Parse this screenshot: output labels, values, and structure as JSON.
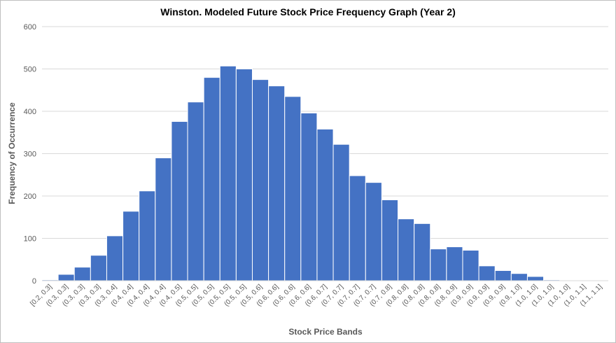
{
  "chart_data": {
    "type": "bar",
    "title": "Winston.  Modeled Future Stock Price Frequency Graph (Year 2)",
    "xlabel": "Stock Price Bands",
    "ylabel": "Frequency of Occurrence",
    "ylim": [
      0,
      600
    ],
    "yticks": [
      0,
      100,
      200,
      300,
      400,
      500,
      600
    ],
    "grid": true,
    "legend": "none",
    "bar_color": "#4472c4",
    "categories": [
      "[0.2, 0.3]",
      "(0.3, 0.3]",
      "(0.3, 0.3]",
      "(0.3, 0.3]",
      "(0.3, 0.4]",
      "(0.4, 0.4]",
      "(0.4, 0.4]",
      "(0.4, 0.4]",
      "(0.4, 0.5]",
      "(0.5, 0.5]",
      "(0.5, 0.5]",
      "(0.5, 0.5]",
      "(0.5, 0.5]",
      "(0.5, 0.6]",
      "(0.6, 0.6]",
      "(0.6, 0.6]",
      "(0.6, 0.6]",
      "(0.6, 0.7]",
      "(0.7, 0.7]",
      "(0.7, 0.7]",
      "(0.7, 0.7]",
      "(0.7, 0.8]",
      "(0.8, 0.8]",
      "(0.8, 0.8]",
      "(0.8, 0.8]",
      "(0.8, 0.9]",
      "(0.9, 0.9]",
      "(0.9, 0.9]",
      "(0.9, 0.9]",
      "(0.9, 1.0]",
      "(1.0, 1.0]",
      "(1.0, 1.0]",
      "(1.0, 1.0]",
      "(1.0, 1.1]",
      "(1.1, 1.1]"
    ],
    "values": [
      2,
      15,
      32,
      60,
      106,
      164,
      212,
      290,
      376,
      422,
      480,
      507,
      500,
      475,
      460,
      435,
      396,
      358,
      322,
      248,
      232,
      191,
      146,
      135,
      75,
      80,
      72,
      35,
      24,
      17,
      10,
      2,
      0,
      0,
      0
    ]
  }
}
